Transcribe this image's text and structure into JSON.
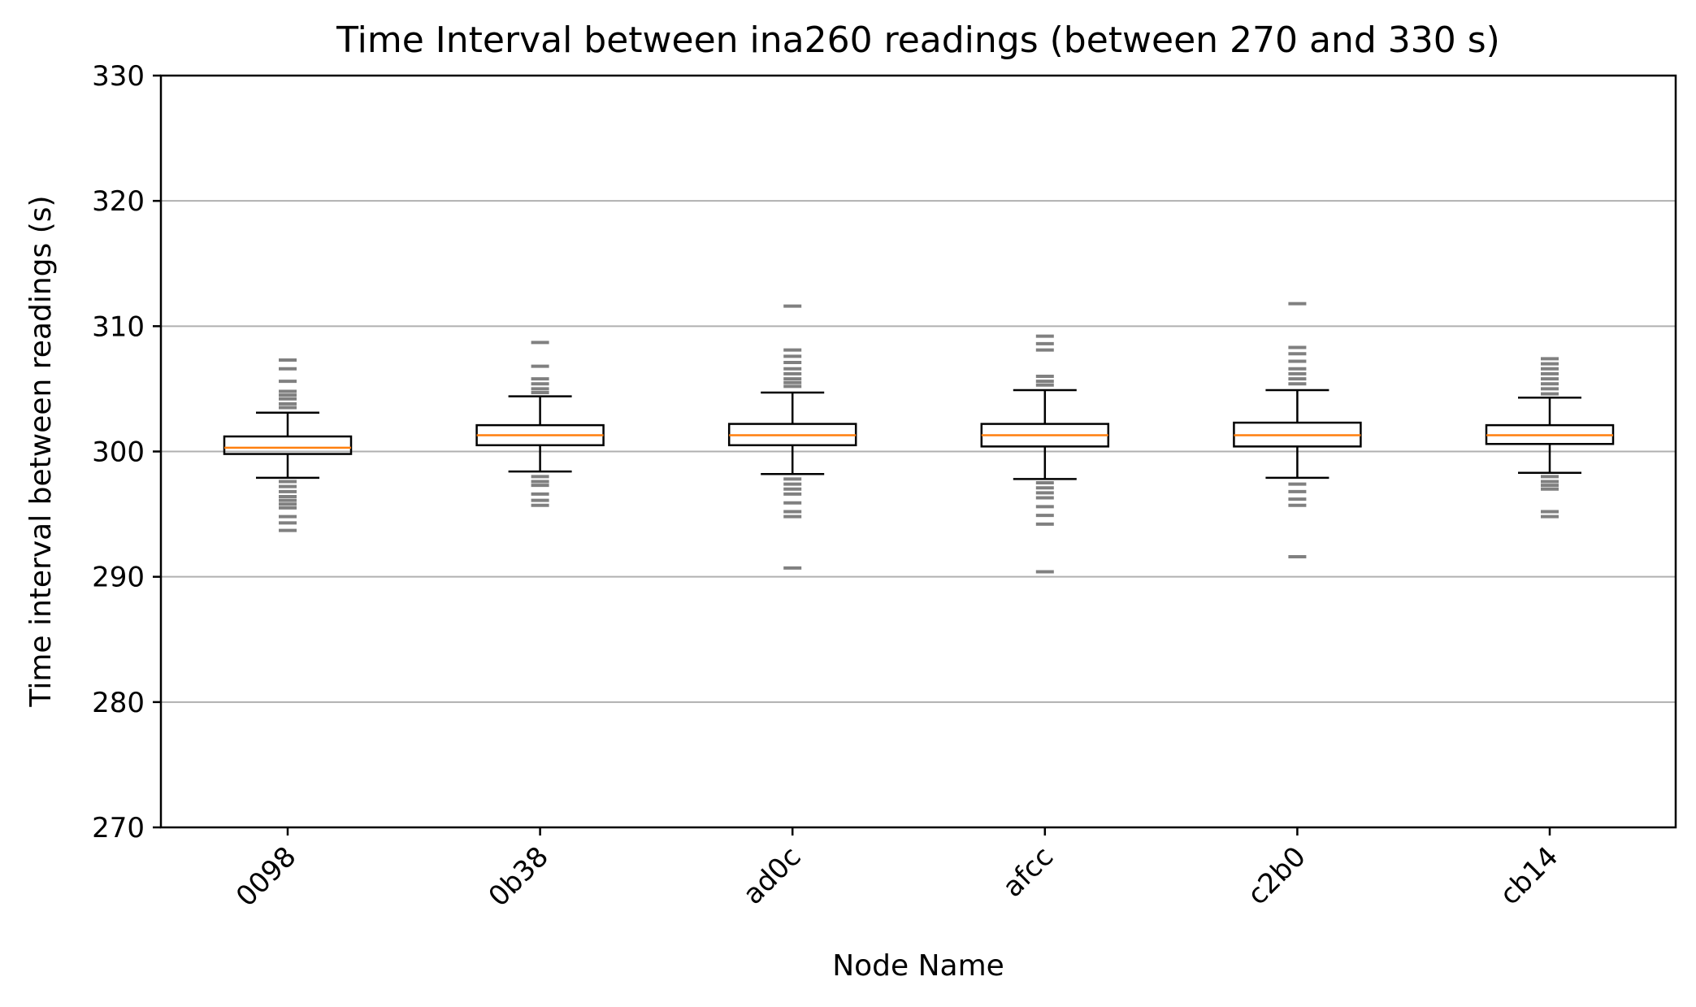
{
  "chart_data": {
    "type": "boxplot",
    "title": "Time Interval between ina260 readings (between 270 and 330 s)",
    "xlabel": "Node Name",
    "ylabel": "Time interval between readings (s)",
    "ylim": [
      270,
      330
    ],
    "yticks": [
      270,
      280,
      290,
      300,
      310,
      320,
      330
    ],
    "y_grid": true,
    "x_tick_rotation_deg": 45,
    "colors": {
      "box": "#000000",
      "median": "#ff7f0e",
      "outlier": "#808080",
      "grid": "#b0b0b0"
    },
    "categories": [
      "0098",
      "0b38",
      "ad0c",
      "afcc",
      "c2b0",
      "cb14"
    ],
    "boxes": [
      {
        "name": "0098",
        "whisker_low": 297.9,
        "q1": 299.8,
        "median": 300.3,
        "q3": 301.2,
        "whisker_high": 303.1,
        "outliers": [
          307.3,
          306.6,
          305.6,
          304.8,
          304.5,
          304.2,
          303.8,
          303.5,
          297.6,
          297.2,
          296.8,
          296.4,
          296.1,
          295.8,
          295.5,
          294.8,
          294.3,
          293.7
        ]
      },
      {
        "name": "0b38",
        "whisker_low": 298.4,
        "q1": 300.5,
        "median": 301.3,
        "q3": 302.1,
        "whisker_high": 304.4,
        "outliers": [
          308.7,
          306.8,
          305.8,
          305.4,
          305.0,
          304.7,
          298.0,
          297.6,
          297.3,
          296.6,
          296.1,
          295.7
        ]
      },
      {
        "name": "ad0c",
        "whisker_low": 298.2,
        "q1": 300.5,
        "median": 301.3,
        "q3": 302.2,
        "whisker_high": 304.7,
        "outliers": [
          311.6,
          308.1,
          307.6,
          307.1,
          306.6,
          306.2,
          305.8,
          305.5,
          305.2,
          297.8,
          297.4,
          297.0,
          296.6,
          295.9,
          295.2,
          294.8,
          290.7
        ]
      },
      {
        "name": "afcc",
        "whisker_low": 297.8,
        "q1": 300.4,
        "median": 301.3,
        "q3": 302.2,
        "whisker_high": 304.9,
        "outliers": [
          309.2,
          308.6,
          308.1,
          306.0,
          305.6,
          305.3,
          297.5,
          297.1,
          296.7,
          296.3,
          295.6,
          294.9,
          294.2,
          290.4
        ]
      },
      {
        "name": "c2b0",
        "whisker_low": 297.9,
        "q1": 300.4,
        "median": 301.3,
        "q3": 302.3,
        "whisker_high": 304.9,
        "outliers": [
          311.8,
          308.3,
          307.8,
          307.2,
          306.6,
          306.2,
          305.8,
          305.4,
          297.4,
          296.8,
          296.2,
          295.7,
          291.6
        ]
      },
      {
        "name": "cb14",
        "whisker_low": 298.3,
        "q1": 300.6,
        "median": 301.3,
        "q3": 302.1,
        "whisker_high": 304.3,
        "outliers": [
          307.4,
          307.0,
          306.6,
          306.2,
          305.8,
          305.4,
          305.0,
          304.6,
          298.0,
          297.6,
          297.3,
          297.0,
          295.2,
          294.8
        ]
      }
    ]
  }
}
